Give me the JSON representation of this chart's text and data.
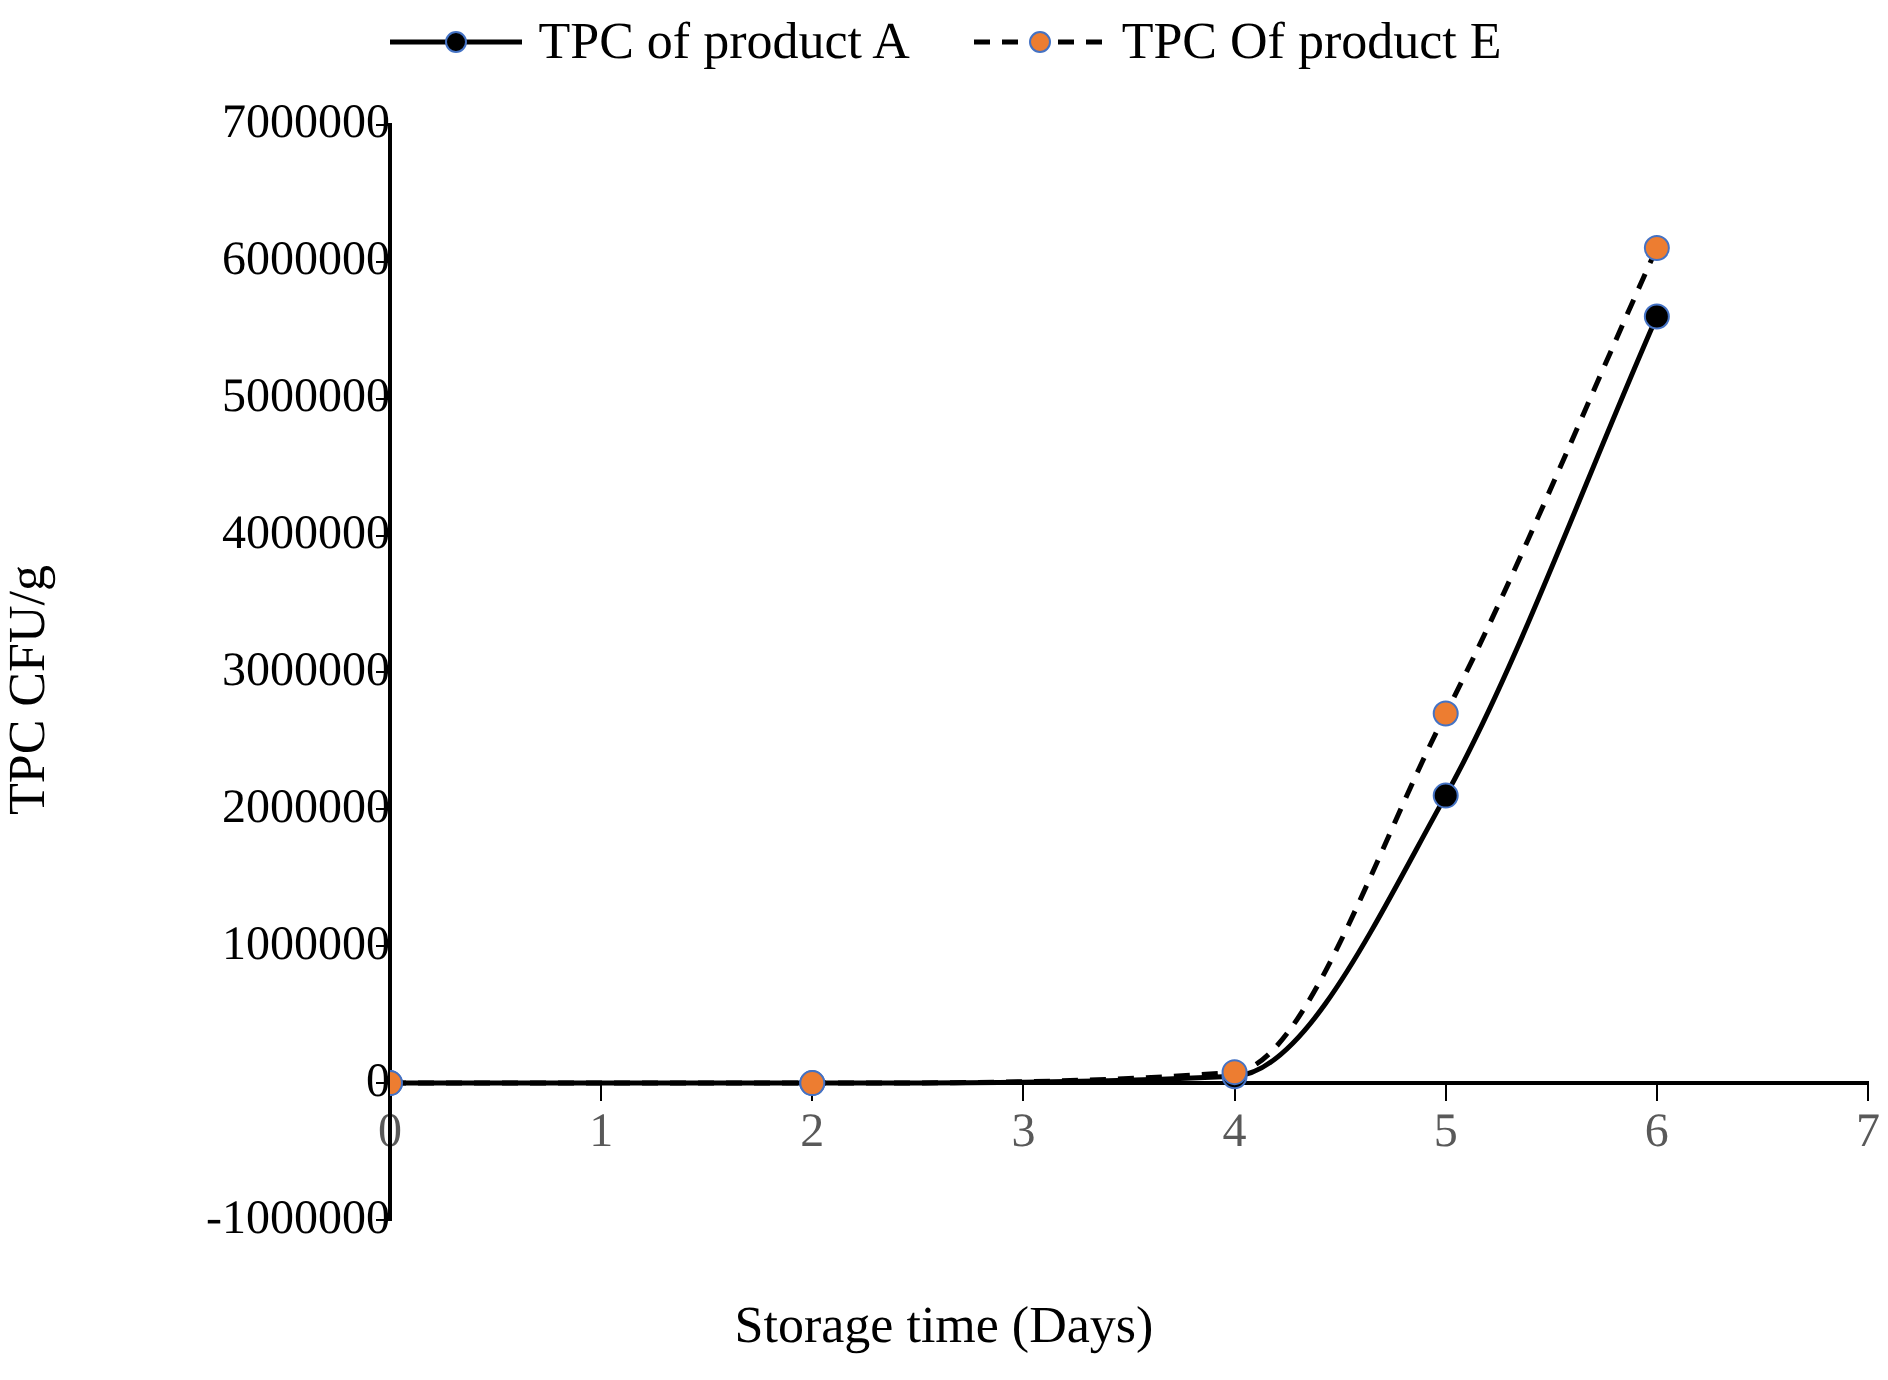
{
  "chart_data": {
    "type": "line",
    "xlabel": "Storage time (Days)",
    "ylabel": "TPC CFU/g",
    "x": [
      0,
      2,
      4,
      5,
      6
    ],
    "series": [
      {
        "name": "TPC of product A",
        "color": "#000000",
        "line_style": "solid",
        "values": [
          0,
          0,
          50000,
          2100000,
          5600000
        ]
      },
      {
        "name": "TPC Of product E",
        "color": "#ed7d31",
        "line_style": "dashed",
        "values": [
          0,
          0,
          80000,
          2700000,
          6100000
        ]
      }
    ],
    "xlim": [
      0,
      7
    ],
    "xticks": [
      0,
      1,
      2,
      3,
      4,
      5,
      6,
      7
    ],
    "ylim": [
      -1000000,
      7000000
    ],
    "yticks": [
      -1000000,
      0,
      1000000,
      2000000,
      3000000,
      4000000,
      5000000,
      6000000,
      7000000
    ],
    "grid": false,
    "legend": "top",
    "marker": "circle"
  }
}
